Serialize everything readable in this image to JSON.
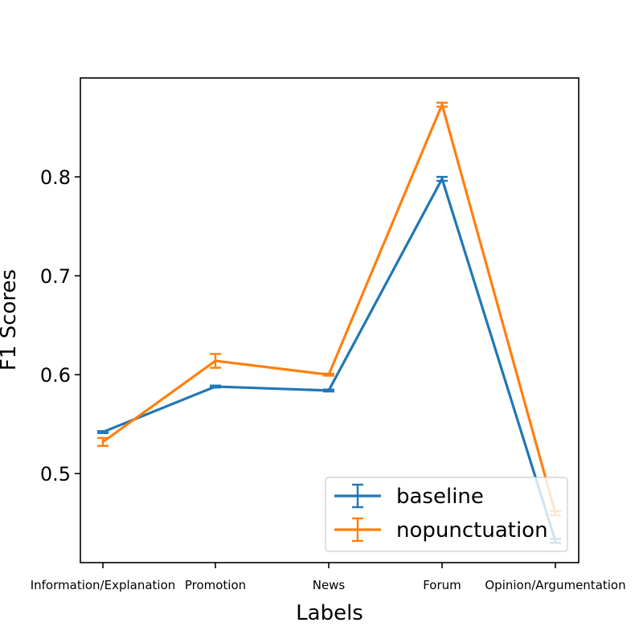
{
  "chart_data": {
    "type": "line",
    "title": "",
    "xlabel": "Labels",
    "ylabel": "F1 Scores",
    "categories": [
      "Information/Explanation",
      "Promotion",
      "News",
      "Forum",
      "Opinion/Argumentation"
    ],
    "ylim": [
      0.41,
      0.9
    ],
    "yticks": [
      0.5,
      0.6,
      0.7,
      0.8
    ],
    "ytick_labels": [
      "0.5",
      "0.6",
      "0.7",
      "0.8"
    ],
    "grid": false,
    "legend_position": "lower-right",
    "series": [
      {
        "name": "baseline",
        "color": "#1f77b4",
        "values": [
          0.542,
          0.588,
          0.584,
          0.798,
          0.432
        ],
        "errors": [
          0.001,
          0.001,
          0.001,
          0.002,
          0.002
        ]
      },
      {
        "name": "nopunctuation",
        "color": "#ff7f0e",
        "values": [
          0.532,
          0.614,
          0.6,
          0.873,
          0.46
        ],
        "errors": [
          0.004,
          0.007,
          0.001,
          0.002,
          0.002
        ]
      }
    ]
  }
}
